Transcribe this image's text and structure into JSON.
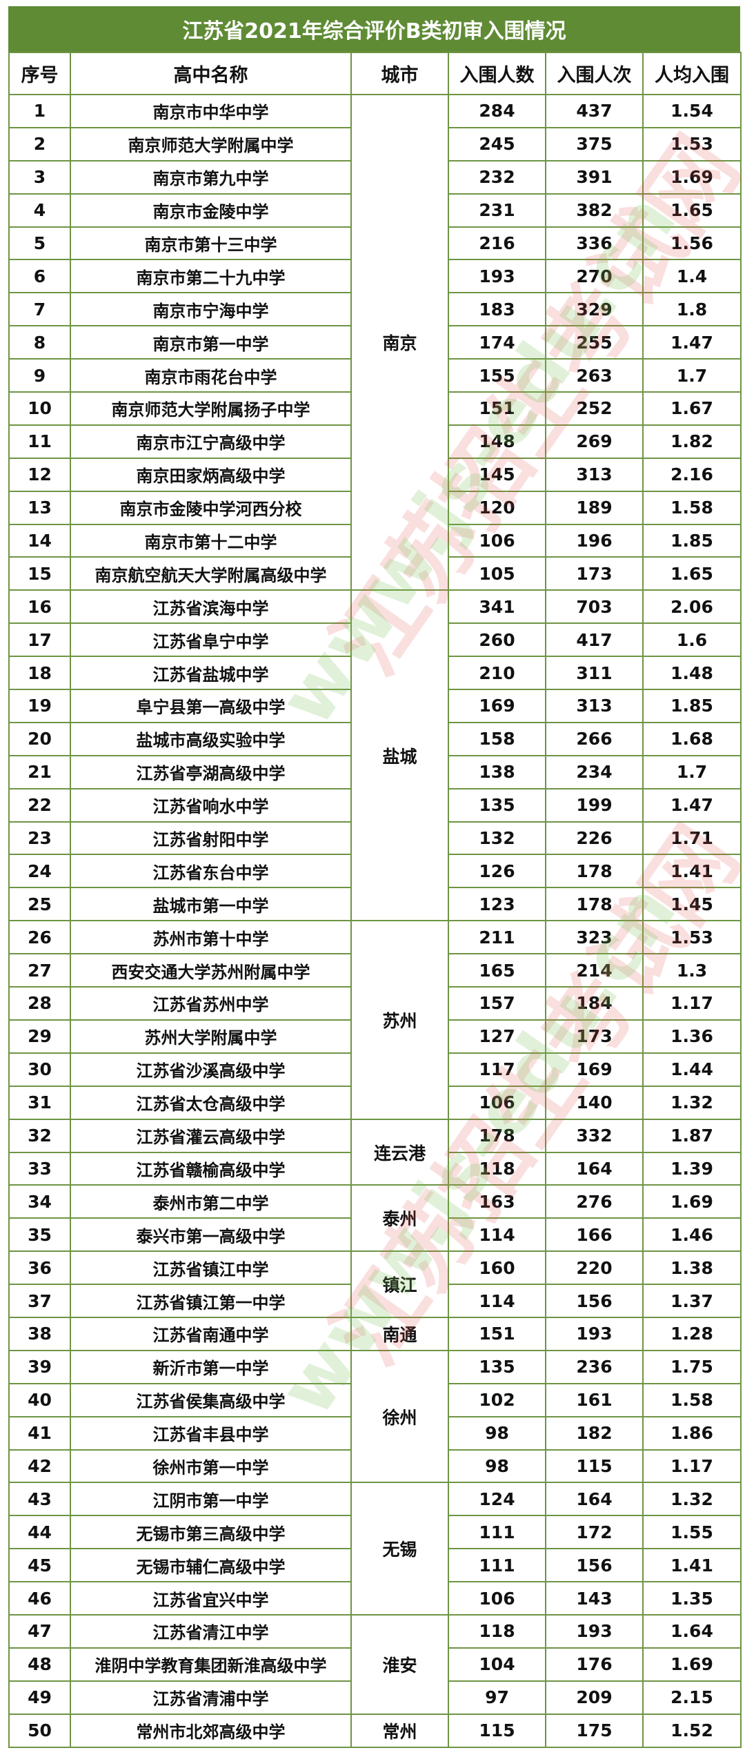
{
  "title": "江苏省2021年综合评价B类初审入围情况",
  "headers": [
    "序号",
    "高中名称",
    "城市",
    "入围人数",
    "入围人次",
    "人均入围"
  ],
  "colors": {
    "title_bg": "#5f8b35",
    "border": "#6e9444"
  },
  "watermark": {
    "cn": "江苏招生考试网",
    "url": "www.js-edu.cn"
  },
  "cities": [
    {
      "name": "南京",
      "rows": 15
    },
    {
      "name": "盐城",
      "rows": 10
    },
    {
      "name": "苏州",
      "rows": 6
    },
    {
      "name": "连云港",
      "rows": 2
    },
    {
      "name": "泰州",
      "rows": 2
    },
    {
      "name": "镇江",
      "rows": 2
    },
    {
      "name": "南通",
      "rows": 1
    },
    {
      "name": "徐州",
      "rows": 4
    },
    {
      "name": "无锡",
      "rows": 4
    },
    {
      "name": "淮安",
      "rows": 3
    },
    {
      "name": "常州",
      "rows": 1
    }
  ],
  "rows": [
    [
      "1",
      "南京市中华中学",
      "284",
      "437",
      "1.54"
    ],
    [
      "2",
      "南京师范大学附属中学",
      "245",
      "375",
      "1.53"
    ],
    [
      "3",
      "南京市第九中学",
      "232",
      "391",
      "1.69"
    ],
    [
      "4",
      "南京市金陵中学",
      "231",
      "382",
      "1.65"
    ],
    [
      "5",
      "南京市第十三中学",
      "216",
      "336",
      "1.56"
    ],
    [
      "6",
      "南京市第二十九中学",
      "193",
      "270",
      "1.4"
    ],
    [
      "7",
      "南京市宁海中学",
      "183",
      "329",
      "1.8"
    ],
    [
      "8",
      "南京市第一中学",
      "174",
      "255",
      "1.47"
    ],
    [
      "9",
      "南京市雨花台中学",
      "155",
      "263",
      "1.7"
    ],
    [
      "10",
      "南京师范大学附属扬子中学",
      "151",
      "252",
      "1.67"
    ],
    [
      "11",
      "南京市江宁高级中学",
      "148",
      "269",
      "1.82"
    ],
    [
      "12",
      "南京田家炳高级中学",
      "145",
      "313",
      "2.16"
    ],
    [
      "13",
      "南京市金陵中学河西分校",
      "120",
      "189",
      "1.58"
    ],
    [
      "14",
      "南京市第十二中学",
      "106",
      "196",
      "1.85"
    ],
    [
      "15",
      "南京航空航天大学附属高级中学",
      "105",
      "173",
      "1.65"
    ],
    [
      "16",
      "江苏省滨海中学",
      "341",
      "703",
      "2.06"
    ],
    [
      "17",
      "江苏省阜宁中学",
      "260",
      "417",
      "1.6"
    ],
    [
      "18",
      "江苏省盐城中学",
      "210",
      "311",
      "1.48"
    ],
    [
      "19",
      "阜宁县第一高级中学",
      "169",
      "313",
      "1.85"
    ],
    [
      "20",
      "盐城市高级实验中学",
      "158",
      "266",
      "1.68"
    ],
    [
      "21",
      "江苏省亭湖高级中学",
      "138",
      "234",
      "1.7"
    ],
    [
      "22",
      "江苏省响水中学",
      "135",
      "199",
      "1.47"
    ],
    [
      "23",
      "江苏省射阳中学",
      "132",
      "226",
      "1.71"
    ],
    [
      "24",
      "江苏省东台中学",
      "126",
      "178",
      "1.41"
    ],
    [
      "25",
      "盐城市第一中学",
      "123",
      "178",
      "1.45"
    ],
    [
      "26",
      "苏州市第十中学",
      "211",
      "323",
      "1.53"
    ],
    [
      "27",
      "西安交通大学苏州附属中学",
      "165",
      "214",
      "1.3"
    ],
    [
      "28",
      "江苏省苏州中学",
      "157",
      "184",
      "1.17"
    ],
    [
      "29",
      "苏州大学附属中学",
      "127",
      "173",
      "1.36"
    ],
    [
      "30",
      "江苏省沙溪高级中学",
      "117",
      "169",
      "1.44"
    ],
    [
      "31",
      "江苏省太仓高级中学",
      "106",
      "140",
      "1.32"
    ],
    [
      "32",
      "江苏省灌云高级中学",
      "178",
      "332",
      "1.87"
    ],
    [
      "33",
      "江苏省赣榆高级中学",
      "118",
      "164",
      "1.39"
    ],
    [
      "34",
      "泰州市第二中学",
      "163",
      "276",
      "1.69"
    ],
    [
      "35",
      "泰兴市第一高级中学",
      "114",
      "166",
      "1.46"
    ],
    [
      "36",
      "江苏省镇江中学",
      "160",
      "220",
      "1.38"
    ],
    [
      "37",
      "江苏省镇江第一中学",
      "114",
      "156",
      "1.37"
    ],
    [
      "38",
      "江苏省南通中学",
      "151",
      "193",
      "1.28"
    ],
    [
      "39",
      "新沂市第一中学",
      "135",
      "236",
      "1.75"
    ],
    [
      "40",
      "江苏省侯集高级中学",
      "102",
      "161",
      "1.58"
    ],
    [
      "41",
      "江苏省丰县中学",
      "98",
      "182",
      "1.86"
    ],
    [
      "42",
      "徐州市第一中学",
      "98",
      "115",
      "1.17"
    ],
    [
      "43",
      "江阴市第一中学",
      "124",
      "164",
      "1.32"
    ],
    [
      "44",
      "无锡市第三高级中学",
      "111",
      "172",
      "1.55"
    ],
    [
      "45",
      "无锡市辅仁高级中学",
      "111",
      "156",
      "1.41"
    ],
    [
      "46",
      "江苏省宜兴中学",
      "106",
      "143",
      "1.35"
    ],
    [
      "47",
      "江苏省清江中学",
      "118",
      "193",
      "1.64"
    ],
    [
      "48",
      "淮阴中学教育集团新淮高级中学",
      "104",
      "176",
      "1.69"
    ],
    [
      "49",
      "江苏省清浦中学",
      "97",
      "209",
      "2.15"
    ],
    [
      "50",
      "常州市北郊高级中学",
      "115",
      "175",
      "1.52"
    ]
  ]
}
